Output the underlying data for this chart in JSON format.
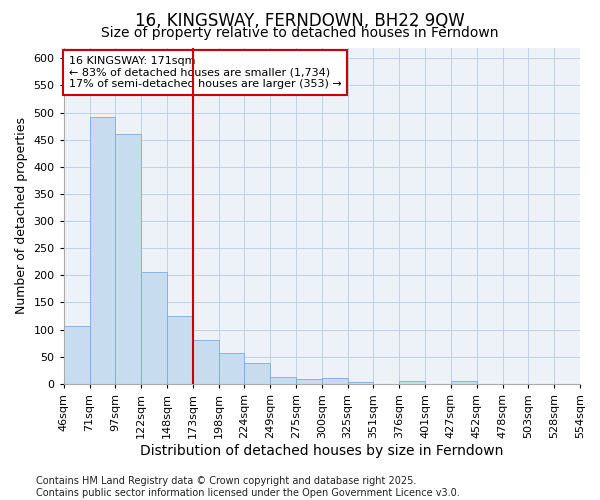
{
  "title": "16, KINGSWAY, FERNDOWN, BH22 9QW",
  "subtitle": "Size of property relative to detached houses in Ferndown",
  "xlabel": "Distribution of detached houses by size in Ferndown",
  "ylabel": "Number of detached properties",
  "footer": "Contains HM Land Registry data © Crown copyright and database right 2025.\nContains public sector information licensed under the Open Government Licence v3.0.",
  "categories": [
    "46sqm",
    "71sqm",
    "97sqm",
    "122sqm",
    "148sqm",
    "173sqm",
    "198sqm",
    "224sqm",
    "249sqm",
    "275sqm",
    "300sqm",
    "325sqm",
    "351sqm",
    "376sqm",
    "401sqm",
    "427sqm",
    "452sqm",
    "478sqm",
    "503sqm",
    "528sqm",
    "554sqm"
  ],
  "bar_vals": [
    106,
    492,
    460,
    207,
    125,
    81,
    57,
    38,
    13,
    8,
    10,
    3,
    0,
    5,
    0,
    5,
    0,
    0,
    0,
    0
  ],
  "bar_color": "#c8dcf0",
  "bar_edge_color": "#7aabe0",
  "grid_color": "#c0d0e8",
  "background_color": "#edf2f8",
  "vline_pos": 5,
  "vline_color": "#cc0000",
  "annotation_text": "16 KINGSWAY: 171sqm\n← 83% of detached houses are smaller (1,734)\n17% of semi-detached houses are larger (353) →",
  "annotation_box_facecolor": "#ffffff",
  "annotation_box_edgecolor": "#cc0000",
  "ylim": [
    0,
    620
  ],
  "yticks": [
    0,
    50,
    100,
    150,
    200,
    250,
    300,
    350,
    400,
    450,
    500,
    550,
    600
  ],
  "title_fontsize": 12,
  "subtitle_fontsize": 10,
  "axis_label_fontsize": 9,
  "tick_fontsize": 8,
  "annotation_fontsize": 8,
  "footer_fontsize": 7
}
